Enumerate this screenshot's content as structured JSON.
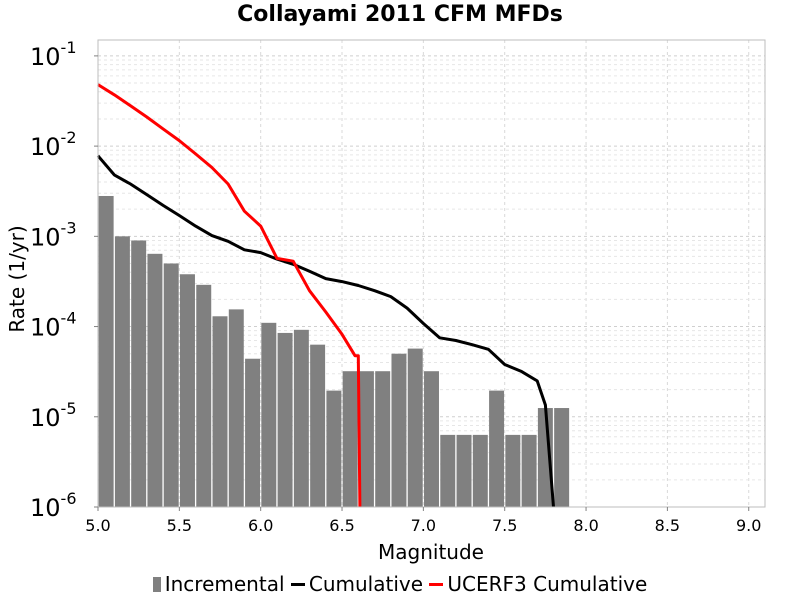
{
  "chart_data": {
    "type": "bar",
    "title": "Collayami 2011 CFM MFDs",
    "xlabel": "Magnitude",
    "ylabel": "Rate (1/yr)",
    "xlim": [
      5.0,
      9.1
    ],
    "ylim": [
      1e-06,
      0.15
    ],
    "yscale": "log",
    "grid": true,
    "legend_position": "bottom",
    "x_ticks": [
      "5.0",
      "5.5",
      "6.0",
      "6.5",
      "7.0",
      "7.5",
      "8.0",
      "8.5",
      "9.0"
    ],
    "y_ticks": [
      {
        "base": "10",
        "exp": "-6"
      },
      {
        "base": "10",
        "exp": "-5"
      },
      {
        "base": "10",
        "exp": "-4"
      },
      {
        "base": "10",
        "exp": "-3"
      },
      {
        "base": "10",
        "exp": "-2"
      },
      {
        "base": "10",
        "exp": "-1"
      }
    ],
    "series": [
      {
        "name": "Incremental",
        "kind": "bar",
        "color": "#808080",
        "x": [
          5.05,
          5.15,
          5.25,
          5.35,
          5.45,
          5.55,
          5.65,
          5.75,
          5.85,
          5.95,
          6.05,
          6.15,
          6.25,
          6.35,
          6.45,
          6.55,
          6.65,
          6.75,
          6.85,
          6.95,
          7.05,
          7.15,
          7.25,
          7.35,
          7.45,
          7.55,
          7.65,
          7.75,
          7.85
        ],
        "values": [
          0.0028,
          0.001,
          0.0009,
          0.00064,
          0.0005,
          0.00038,
          0.00029,
          0.00013,
          0.000155,
          4.4e-05,
          0.00011,
          8.5e-05,
          9.2e-05,
          6.3e-05,
          1.95e-05,
          3.2e-05,
          3.2e-05,
          3.2e-05,
          5e-05,
          5.7e-05,
          3.2e-05,
          6.3e-06,
          6.3e-06,
          6.3e-06,
          1.95e-05,
          6.3e-06,
          6.3e-06,
          1.25e-05,
          1.25e-05
        ]
      },
      {
        "name": "Cumulative",
        "kind": "line",
        "color": "#000000",
        "x": [
          5.0,
          5.1,
          5.2,
          5.3,
          5.4,
          5.5,
          5.6,
          5.7,
          5.8,
          5.9,
          6.0,
          6.1,
          6.2,
          6.3,
          6.4,
          6.5,
          6.6,
          6.7,
          6.8,
          6.9,
          7.0,
          7.1,
          7.2,
          7.3,
          7.4,
          7.5,
          7.6,
          7.7,
          7.75,
          7.8
        ],
        "values": [
          0.0078,
          0.0048,
          0.0038,
          0.0029,
          0.0022,
          0.0017,
          0.0013,
          0.00102,
          0.00088,
          0.00071,
          0.00066,
          0.00056,
          0.00049,
          0.00041,
          0.00034,
          0.000315,
          0.000285,
          0.00025,
          0.000215,
          0.00016,
          0.000108,
          7.5e-05,
          7e-05,
          6.3e-05,
          5.6e-05,
          3.8e-05,
          3.2e-05,
          2.5e-05,
          1.35e-05,
          1e-06
        ]
      },
      {
        "name": "UCERF3 Cumulative",
        "kind": "line",
        "color": "#ff0000",
        "x": [
          5.0,
          5.1,
          5.2,
          5.3,
          5.4,
          5.5,
          5.6,
          5.7,
          5.8,
          5.9,
          6.0,
          6.1,
          6.2,
          6.3,
          6.4,
          6.5,
          6.58,
          6.6,
          6.61
        ],
        "values": [
          0.048,
          0.037,
          0.028,
          0.021,
          0.0155,
          0.0115,
          0.0082,
          0.0058,
          0.0038,
          0.0019,
          0.0013,
          0.00057,
          0.00053,
          0.00025,
          0.000145,
          8.2e-05,
          4.75e-05,
          4.75e-05,
          1e-06
        ]
      }
    ]
  }
}
